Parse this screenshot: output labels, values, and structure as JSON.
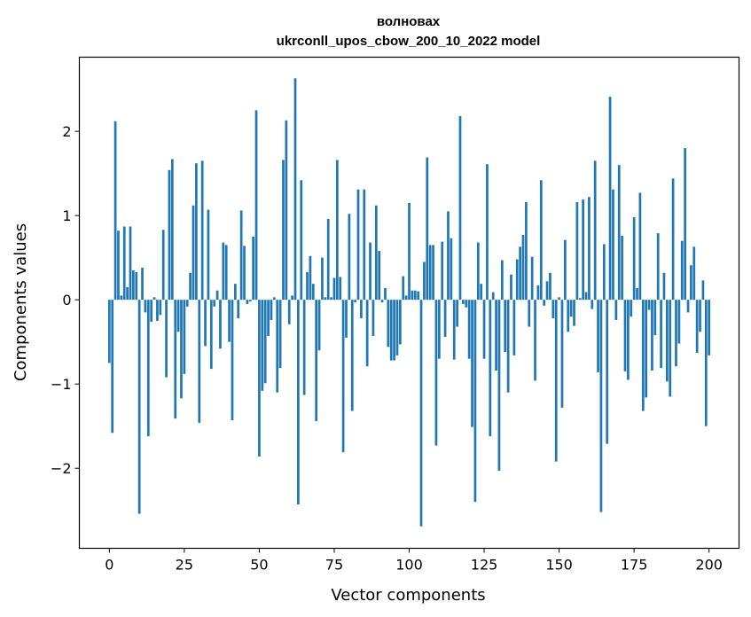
{
  "chart_data": {
    "type": "bar",
    "title": "волновах",
    "subtitle": "ukrconll_upos_cbow_200_10_2022 model",
    "xlabel": "Vector components",
    "ylabel": "Components values",
    "xlim": [
      -10,
      210
    ],
    "ylim": [
      -2.95,
      2.88
    ],
    "xticks": [
      0,
      25,
      50,
      75,
      100,
      125,
      150,
      175,
      200
    ],
    "xtick_labels": [
      "0",
      "25",
      "50",
      "75",
      "100",
      "125",
      "150",
      "175",
      "200"
    ],
    "yticks": [
      -2,
      -1,
      0,
      1,
      2
    ],
    "ytick_labels": [
      "−2",
      "−1",
      "0",
      "1",
      "2"
    ],
    "bar_color": "#1f77b4",
    "grid": false,
    "values": [
      -0.75,
      -1.58,
      2.12,
      0.82,
      0.05,
      0.87,
      0.15,
      0.87,
      0.35,
      0.33,
      -2.54,
      0.38,
      -0.15,
      -1.62,
      -0.26,
      0.03,
      -0.25,
      -0.18,
      0.83,
      -0.92,
      1.54,
      1.67,
      -1.41,
      -0.38,
      -1.17,
      -0.88,
      -0.08,
      0.32,
      1.12,
      1.62,
      -1.46,
      1.65,
      -0.55,
      1.07,
      -0.82,
      -0.08,
      0.11,
      -0.58,
      0.68,
      0.65,
      -0.5,
      -1.43,
      0.19,
      -0.22,
      1.06,
      0.64,
      -0.05,
      -0.02,
      0.75,
      2.25,
      -1.86,
      -1.08,
      -0.99,
      -0.43,
      -0.24,
      0.03,
      -1.1,
      -0.81,
      1.66,
      2.13,
      -0.29,
      0.05,
      2.63,
      -2.43,
      1.42,
      -1.13,
      0.33,
      0.52,
      0.19,
      -1.44,
      -0.6,
      0.5,
      0.03,
      0.96,
      0.03,
      0.26,
      1.66,
      0.27,
      -1.81,
      -0.45,
      1.02,
      -1.32,
      -0.03,
      1.31,
      -0.22,
      1.31,
      -0.79,
      0.68,
      -0.43,
      1.12,
      0.58,
      -0.03,
      0.14,
      -0.56,
      -0.72,
      -0.72,
      -0.66,
      -0.53,
      0.28,
      0.05,
      1.15,
      0.11,
      0.11,
      0.1,
      -2.69,
      0.45,
      1.69,
      0.65,
      0.65,
      -1.73,
      -0.7,
      0.69,
      -0.44,
      1.05,
      0.73,
      -0.71,
      -0.32,
      2.18,
      -0.05,
      -0.09,
      -0.7,
      -1.51,
      -2.4,
      0.68,
      0.19,
      -0.7,
      1.61,
      -1.62,
      0.09,
      -0.84,
      -2.03,
      0.47,
      -0.62,
      -1.1,
      0.3,
      -0.66,
      0.48,
      0.63,
      0.77,
      1.16,
      -0.32,
      0.51,
      -0.96,
      0.17,
      1.42,
      -0.07,
      0.22,
      0.32,
      -0.22,
      -1.92,
      0.03,
      -1.28,
      0.71,
      -0.38,
      -0.2,
      -0.31,
      1.16,
      0.02,
      1.19,
      0.09,
      1.22,
      -0.11,
      1.65,
      -0.86,
      -2.52,
      0.66,
      -1.71,
      2.41,
      1.31,
      -0.24,
      1.6,
      0.76,
      -0.85,
      -0.95,
      -0.2,
      0.98,
      0.14,
      1.27,
      -1.32,
      -1.16,
      -0.12,
      -0.84,
      -0.42,
      0.79,
      -0.81,
      0.32,
      -0.97,
      -1.15,
      1.44,
      -0.79,
      -0.52,
      0.7,
      1.8,
      -0.15,
      0.41,
      0.63,
      -0.63,
      -0.38,
      0.23,
      -1.5,
      -0.66
    ]
  }
}
